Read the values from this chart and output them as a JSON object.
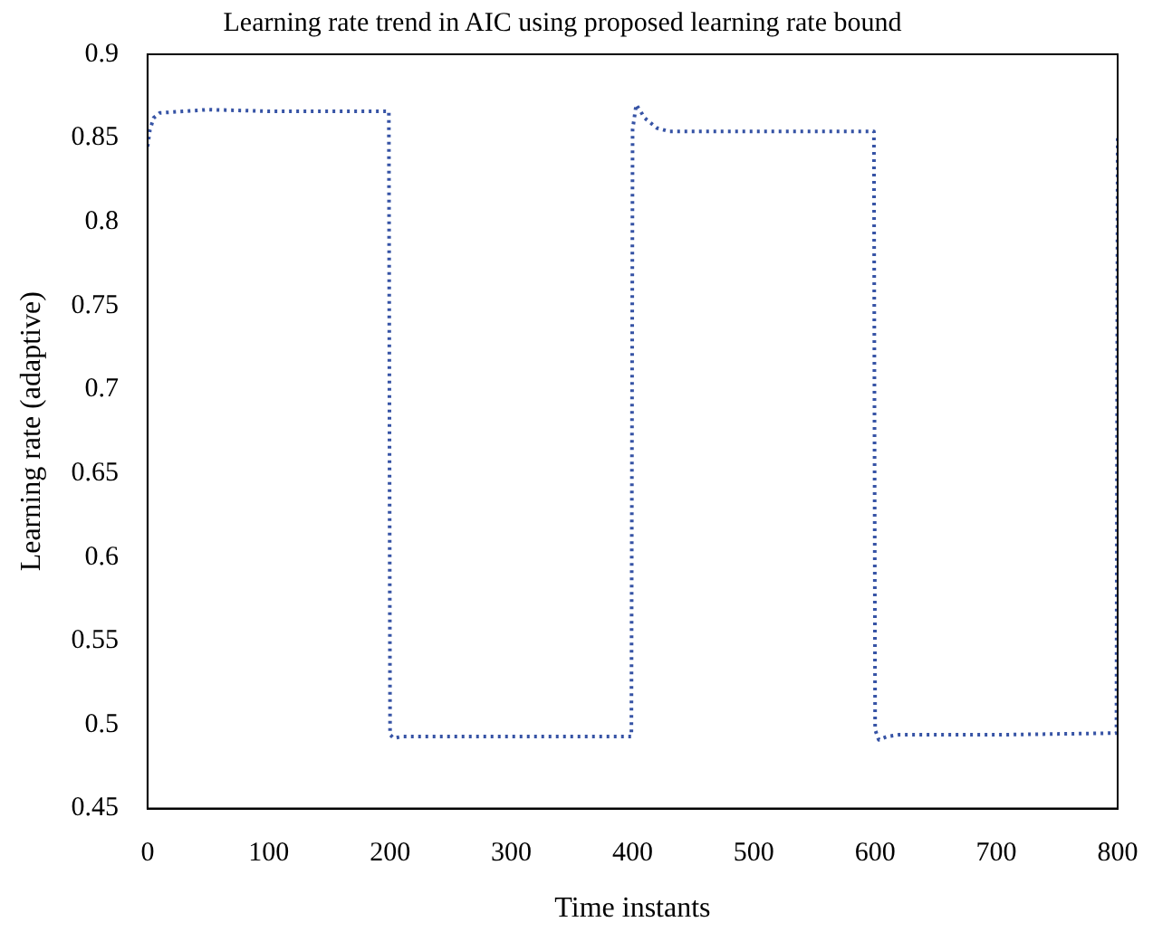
{
  "chart_data": {
    "type": "line",
    "title": "Learning rate trend in AIC using proposed learning rate bound",
    "xlabel": "Time instants",
    "ylabel": "Learning rate (adaptive)",
    "x": [
      0,
      2,
      5,
      10,
      30,
      50,
      100,
      150,
      199,
      200,
      203,
      210,
      300,
      399,
      400,
      403,
      410,
      420,
      430,
      500,
      599,
      600,
      603,
      610,
      620,
      700,
      799,
      800
    ],
    "series": [
      {
        "color": "#3653a5",
        "values": [
          0.845,
          0.855,
          0.862,
          0.865,
          0.866,
          0.867,
          0.866,
          0.866,
          0.866,
          0.494,
          0.492,
          0.493,
          0.493,
          0.493,
          0.855,
          0.87,
          0.862,
          0.856,
          0.854,
          0.854,
          0.854,
          0.497,
          0.491,
          0.493,
          0.494,
          0.494,
          0.495,
          0.85
        ]
      }
    ],
    "xlim": [
      0,
      800
    ],
    "xticks": [
      0,
      100,
      200,
      300,
      400,
      500,
      600,
      700,
      800
    ],
    "ylim": [
      0.45,
      0.9
    ],
    "yticks": [
      0.45,
      0.5,
      0.55,
      0.6,
      0.65,
      0.7,
      0.75,
      0.8,
      0.85,
      0.9
    ],
    "grid": false,
    "legend": false,
    "marker": "none",
    "line_style": "dotted"
  }
}
